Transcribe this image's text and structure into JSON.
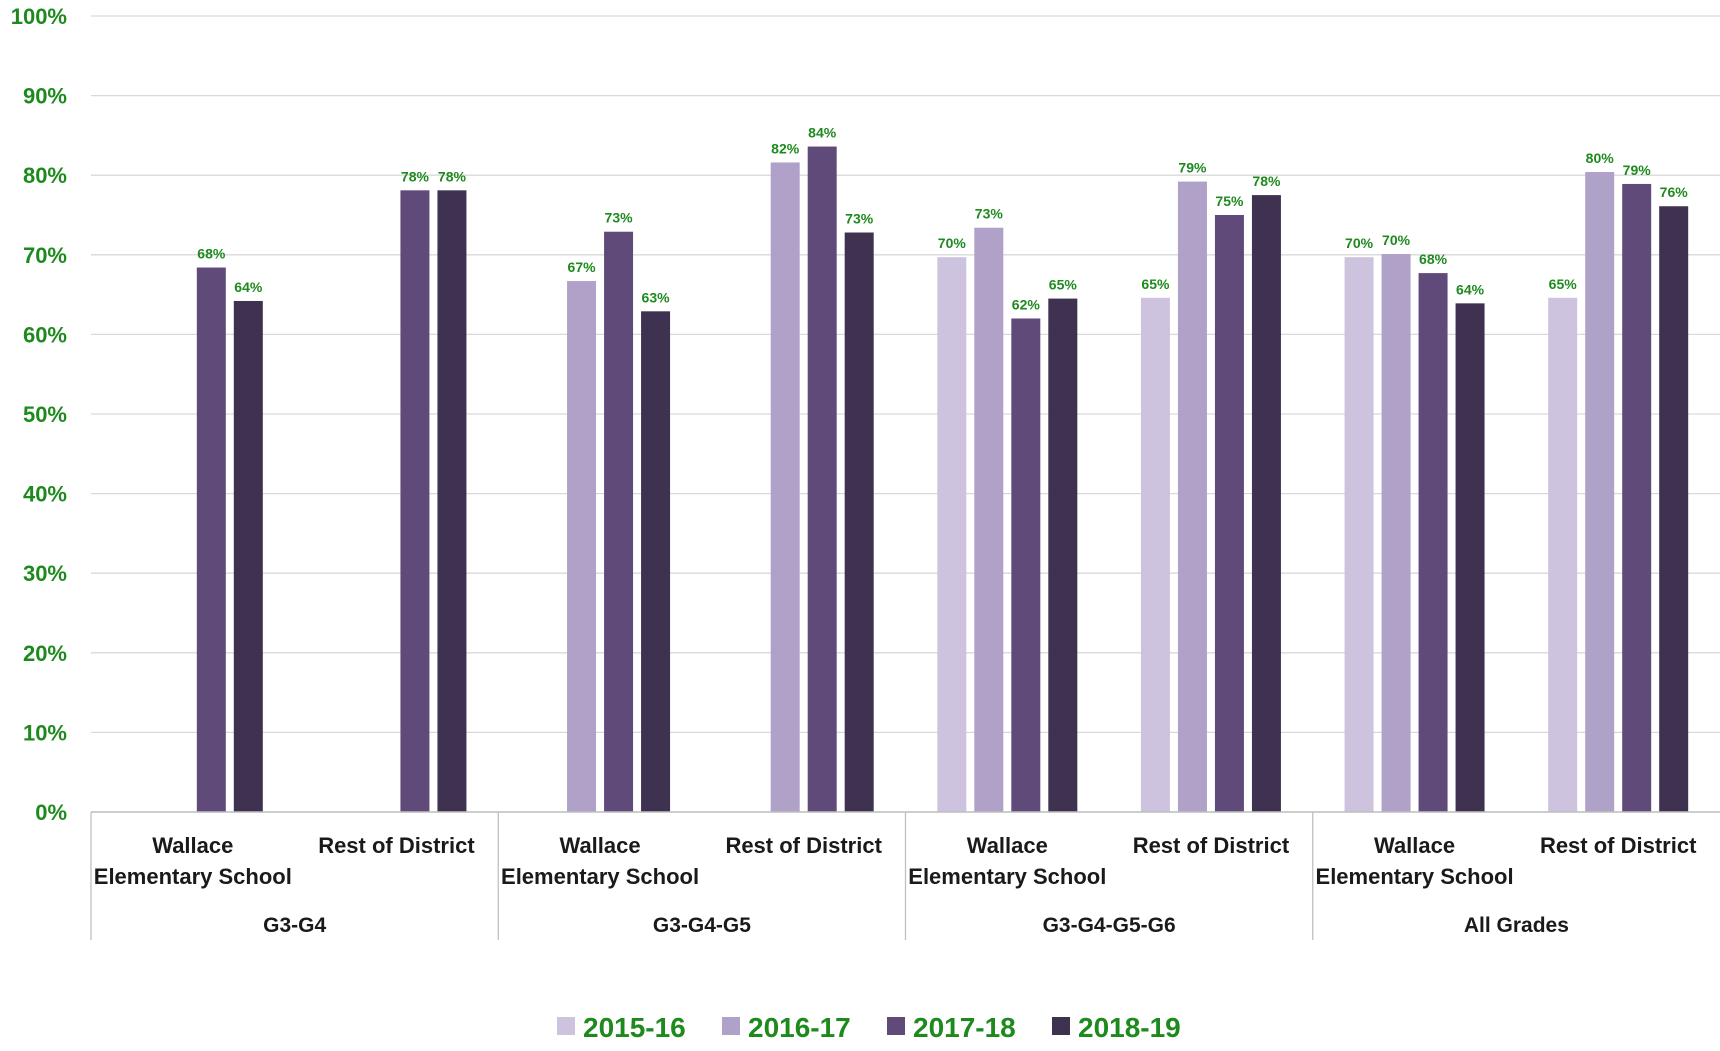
{
  "chart_data": {
    "type": "bar",
    "ylim": [
      0,
      100
    ],
    "y_ticks": [
      "0%",
      "10%",
      "20%",
      "30%",
      "40%",
      "50%",
      "60%",
      "70%",
      "80%",
      "90%",
      "100%"
    ],
    "y_tick_values": [
      0,
      10,
      20,
      30,
      40,
      50,
      60,
      70,
      80,
      90,
      100
    ],
    "grid": true,
    "legend_position": "bottom",
    "groups": [
      "G3-G4",
      "G3-G4-G5",
      "G3-G4-G5-G6",
      "All Grades"
    ],
    "subcategories": [
      "Wallace Elementary School",
      "Rest of District"
    ],
    "subcategory_lines": [
      [
        "Wallace",
        "Elementary School"
      ],
      [
        "Rest of District"
      ]
    ],
    "series": [
      {
        "name": "2015-16",
        "color": "#CDC3DE",
        "values": [
          null,
          null,
          null,
          null,
          69.7,
          64.6,
          69.7,
          64.6
        ]
      },
      {
        "name": "2016-17",
        "color": "#B0A1C8",
        "values": [
          null,
          null,
          66.7,
          81.6,
          73.4,
          79.2,
          70.1,
          80.4
        ]
      },
      {
        "name": "2017-18",
        "color": "#5F4A7A",
        "values": [
          68.4,
          78.1,
          72.9,
          83.6,
          62.0,
          75.0,
          67.7,
          78.9
        ]
      },
      {
        "name": "2018-19",
        "color": "#3F3150",
        "values": [
          64.2,
          78.1,
          62.9,
          72.8,
          64.5,
          77.5,
          63.9,
          76.1
        ]
      }
    ],
    "data_labels": [
      [
        null,
        null,
        null,
        null,
        "70%",
        "65%",
        "70%",
        "65%"
      ],
      [
        null,
        null,
        "67%",
        "82%",
        "73%",
        "79%",
        "70%",
        "80%"
      ],
      [
        "68%",
        "78%",
        "73%",
        "84%",
        "62%",
        "75%",
        "68%",
        "79%"
      ],
      [
        "64%",
        "78%",
        "63%",
        "73%",
        "65%",
        "78%",
        "64%",
        "76%"
      ]
    ],
    "colors": {
      "tick_text": "#1E8A1E",
      "data_label": "#1E8A1E",
      "legend_text": "#1E8A1E",
      "grid": "#D9D9D9"
    }
  }
}
